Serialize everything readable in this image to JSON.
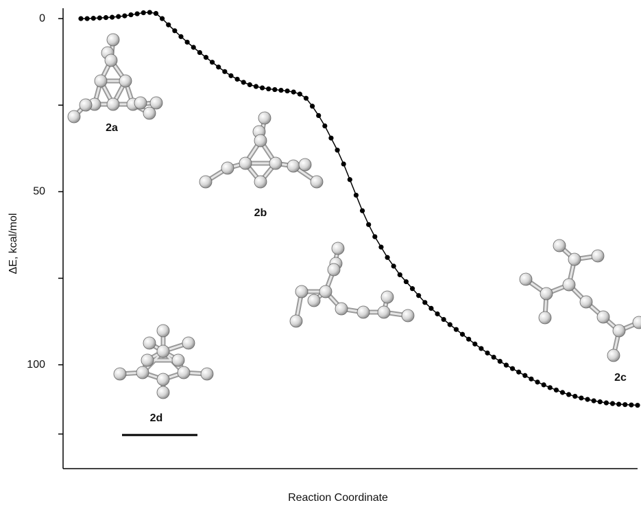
{
  "chart_data": {
    "type": "line",
    "y_label": "ΔE, kcal/mol",
    "x_label": "Reaction Coordinate",
    "annotations": [
      "2a",
      "2b",
      "2c",
      "2d"
    ],
    "ylim": [
      -3,
      130
    ],
    "y_inverted": true,
    "yticks": [
      0,
      50,
      100
    ],
    "y_minor_ticks": [
      25,
      75,
      120
    ],
    "color": "#000000",
    "values": [
      0,
      0,
      -0.1,
      -0.2,
      -0.3,
      -0.4,
      -0.6,
      -0.8,
      -1.1,
      -1.4,
      -1.7,
      -1.8,
      -1.5,
      0,
      1.8,
      3.5,
      5.2,
      6.8,
      8.3,
      9.8,
      11.2,
      12.6,
      14,
      15.3,
      16.5,
      17.5,
      18.4,
      19.1,
      19.6,
      20,
      20.3,
      20.5,
      20.7,
      20.9,
      21.2,
      21.8,
      23,
      25.3,
      28,
      31,
      34.5,
      38,
      42,
      46.5,
      51,
      55.5,
      59.5,
      63,
      66,
      69,
      71.5,
      74,
      76,
      78,
      80,
      82,
      83.7,
      85.3,
      86.9,
      88.4,
      89.8,
      91.2,
      92.6,
      94,
      95.3,
      96.6,
      97.8,
      99,
      100.1,
      101.1,
      102.1,
      103.1,
      104.1,
      105,
      105.8,
      106.6,
      107.3,
      108,
      108.6,
      109.1,
      109.6,
      110,
      110.4,
      110.7,
      111,
      111.2,
      111.4,
      111.5,
      111.6,
      111.7
    ]
  }
}
